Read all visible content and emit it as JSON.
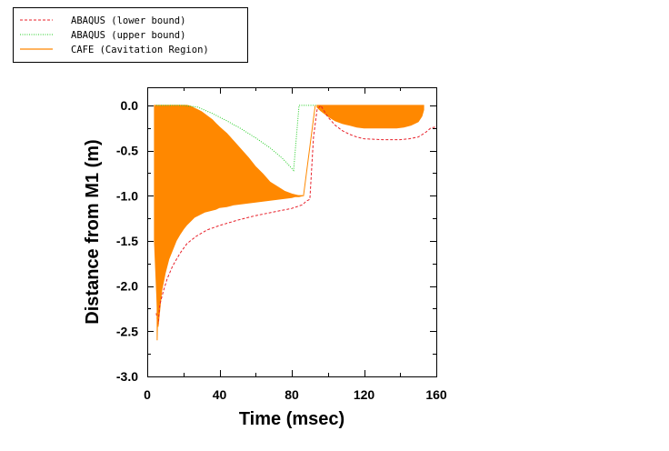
{
  "chart_data": {
    "type": "line",
    "title": "",
    "xlabel": "Time (msec)",
    "ylabel": "Distance from M1 (m)",
    "xlim": [
      0,
      160
    ],
    "ylim": [
      -3.0,
      0.2
    ],
    "x_ticks": [
      0,
      40,
      80,
      120,
      160
    ],
    "x_tick_labels": [
      "0",
      "40",
      "80",
      "120",
      "160"
    ],
    "y_ticks": [
      0.0,
      -0.5,
      -1.0,
      -1.5,
      -2.0,
      -2.5,
      -3.0
    ],
    "y_tick_labels": [
      "0.0",
      "-0.5",
      "-1.0",
      "-1.5",
      "-2.0",
      "-2.5",
      "-3.0"
    ],
    "grid": false,
    "legend_position": "top-left-outside",
    "series": [
      {
        "name": "ABAQUS (lower bound)",
        "color": "#e8202a",
        "style": "dashed",
        "x": [
          5,
          6,
          7,
          9,
          11,
          14,
          18,
          22,
          27,
          33,
          40,
          50,
          60,
          70,
          80,
          86,
          88,
          90,
          92,
          94,
          96,
          100,
          104,
          108,
          112,
          116,
          120,
          130,
          140,
          145,
          150,
          154,
          157,
          160
        ],
        "y": [
          -2.3,
          -2.42,
          -2.2,
          -2.05,
          -1.92,
          -1.78,
          -1.64,
          -1.53,
          -1.45,
          -1.38,
          -1.33,
          -1.27,
          -1.22,
          -1.18,
          -1.14,
          -1.1,
          -1.06,
          -1.04,
          -0.35,
          -0.05,
          0.0,
          -0.13,
          -0.22,
          -0.28,
          -0.32,
          -0.35,
          -0.37,
          -0.38,
          -0.38,
          -0.37,
          -0.35,
          -0.3,
          -0.25,
          -0.24
        ]
      },
      {
        "name": "ABAQUS (upper bound)",
        "color": "#22cc22",
        "style": "dotted",
        "x": [
          5,
          10,
          20,
          28,
          36,
          44,
          52,
          60,
          68,
          75,
          81,
          84,
          88,
          92,
          94
        ],
        "y": [
          0.0,
          0.0,
          0.0,
          -0.02,
          -0.09,
          -0.17,
          -0.26,
          -0.36,
          -0.47,
          -0.59,
          -0.72,
          0.0,
          0.0,
          0.0,
          0.0
        ]
      },
      {
        "name": "CAFE (Cavitation Region)",
        "color": "#ff8800",
        "style": "solid",
        "x": [
          5.5,
          5.5,
          7,
          86.5,
          93
        ],
        "y": [
          -0.5,
          -2.6,
          -1.0,
          -1.0,
          0.0
        ]
      }
    ],
    "cavitation_regions": [
      {
        "name": "Cavitation Region 1",
        "color": "#ff8800",
        "x": [
          4,
          6,
          8,
          10,
          12,
          14,
          16,
          18,
          20,
          22,
          24,
          26,
          28,
          30,
          32,
          34,
          36,
          38,
          40,
          44,
          48,
          52,
          56,
          60,
          64,
          68,
          72,
          76,
          80,
          82,
          84,
          86
        ],
        "upper": [
          0.0,
          0.0,
          0.0,
          0.0,
          0.0,
          0.0,
          0.0,
          0.0,
          0.0,
          0.0,
          -0.01,
          -0.03,
          -0.05,
          -0.07,
          -0.1,
          -0.13,
          -0.16,
          -0.2,
          -0.24,
          -0.31,
          -0.4,
          -0.49,
          -0.58,
          -0.68,
          -0.76,
          -0.85,
          -0.9,
          -0.95,
          -0.98,
          -0.99,
          -1.0,
          -1.0
        ],
        "lower": [
          -1.5,
          -2.45,
          -2.05,
          -1.85,
          -1.7,
          -1.6,
          -1.5,
          -1.43,
          -1.37,
          -1.32,
          -1.28,
          -1.24,
          -1.22,
          -1.2,
          -1.18,
          -1.17,
          -1.16,
          -1.15,
          -1.13,
          -1.12,
          -1.1,
          -1.09,
          -1.08,
          -1.07,
          -1.06,
          -1.05,
          -1.04,
          -1.03,
          -1.02,
          -1.01,
          -1.01,
          -1.0
        ]
      },
      {
        "name": "Cavitation Region 2",
        "color": "#ff8800",
        "x": [
          94,
          96,
          100,
          104,
          108,
          112,
          116,
          120,
          126,
          132,
          138,
          142,
          146,
          150,
          152,
          153
        ],
        "upper": [
          0.0,
          0.0,
          0.0,
          0.0,
          0.0,
          0.0,
          0.0,
          0.0,
          0.0,
          0.0,
          0.0,
          0.0,
          0.0,
          0.0,
          0.0,
          0.0
        ],
        "lower": [
          -0.02,
          -0.06,
          -0.12,
          -0.17,
          -0.2,
          -0.22,
          -0.24,
          -0.25,
          -0.25,
          -0.25,
          -0.25,
          -0.24,
          -0.22,
          -0.18,
          -0.12,
          -0.05
        ]
      }
    ]
  }
}
